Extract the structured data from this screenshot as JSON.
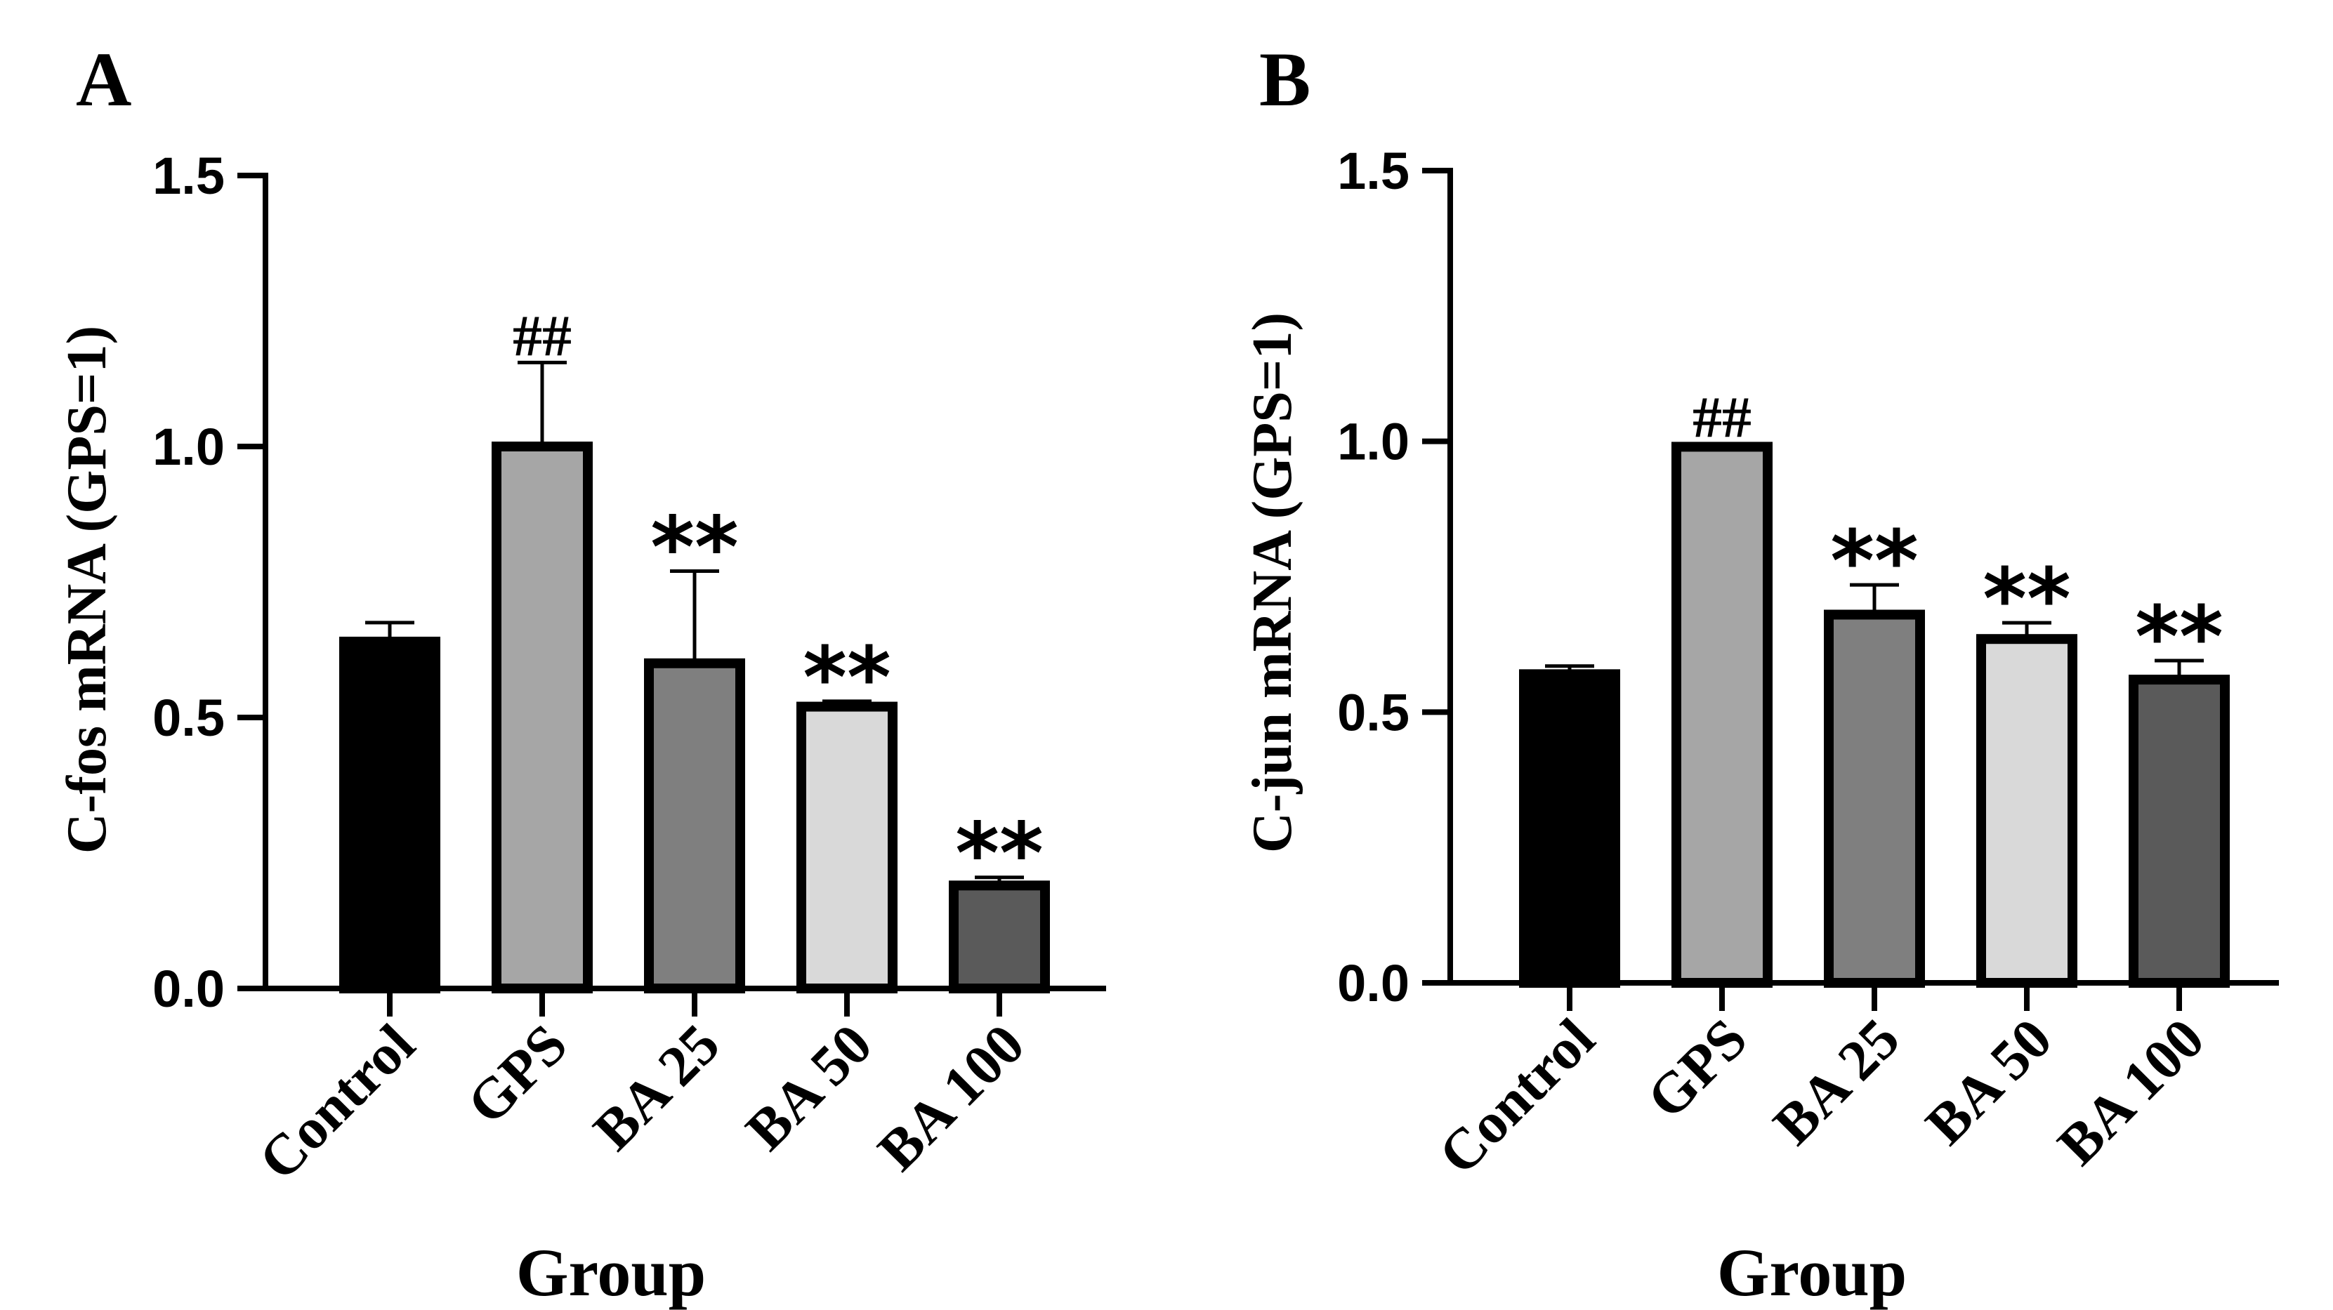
{
  "chart_data": [
    {
      "panel": "A",
      "type": "bar",
      "categories": [
        "Control",
        "GPS",
        "BA 25",
        "BA 50",
        "BA 100"
      ],
      "values": [
        0.64,
        1.0,
        0.6,
        0.52,
        0.19
      ],
      "errors": [
        0.035,
        0.155,
        0.17,
        0.01,
        0.015
      ],
      "annotations": [
        "",
        "##",
        "**",
        "**",
        "**"
      ],
      "colors": [
        "#000000",
        "#a6a6a6",
        "#7f7f7f",
        "#d9d9d9",
        "#5a5a5a"
      ],
      "xlabel": "Group",
      "ylabel": "C-fos mRNA (GPS=1)",
      "ylim": [
        0,
        1.5
      ],
      "yticks": [
        "0.0",
        "0.5",
        "1.0",
        "1.5"
      ]
    },
    {
      "panel": "B",
      "type": "bar",
      "categories": [
        "Control",
        "GPS",
        "BA 25",
        "BA 50",
        "BA 100"
      ],
      "values": [
        0.57,
        0.99,
        0.68,
        0.635,
        0.56
      ],
      "errors": [
        0.015,
        0.005,
        0.055,
        0.03,
        0.035
      ],
      "annotations": [
        "",
        "##",
        "**",
        "**",
        "**"
      ],
      "colors": [
        "#000000",
        "#a6a6a6",
        "#7f7f7f",
        "#d9d9d9",
        "#5a5a5a"
      ],
      "xlabel": "Group",
      "ylabel": "C-jun mRNA (GPS=1)",
      "ylim": [
        0,
        1.5
      ],
      "yticks": [
        "0.0",
        "0.5",
        "1.0",
        "1.5"
      ]
    }
  ]
}
